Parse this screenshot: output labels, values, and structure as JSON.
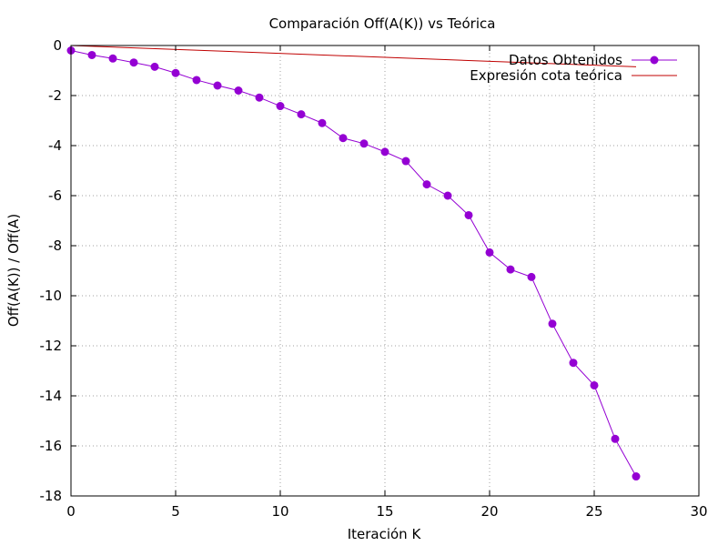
{
  "chart_data": {
    "type": "line",
    "title": "Comparación Off(A(K)) vs Teórica",
    "xlabel": "Iteración K",
    "ylabel": "Off(A(K)) / Off(A)",
    "xlim": [
      0,
      30
    ],
    "ylim": [
      -18,
      0
    ],
    "xticks": [
      0,
      5,
      10,
      15,
      20,
      25,
      30
    ],
    "yticks": [
      0,
      -2,
      -4,
      -6,
      -8,
      -10,
      -12,
      -14,
      -16,
      -18
    ],
    "grid": true,
    "legend_position": "top-right",
    "series": [
      {
        "name": "Datos Obtenidos",
        "color": "#9400d3",
        "marker": "circle",
        "x": [
          0,
          1,
          2,
          3,
          4,
          5,
          6,
          7,
          8,
          9,
          10,
          11,
          12,
          13,
          14,
          15,
          16,
          17,
          18,
          19,
          20,
          21,
          22,
          23,
          24,
          25,
          26,
          27
        ],
        "y": [
          -0.2,
          -0.38,
          -0.52,
          -0.68,
          -0.85,
          -1.1,
          -1.38,
          -1.6,
          -1.8,
          -2.08,
          -2.42,
          -2.75,
          -3.1,
          -3.7,
          -3.92,
          -4.25,
          -4.62,
          -5.55,
          -6.0,
          -6.78,
          -8.27,
          -8.95,
          -9.25,
          -11.12,
          -12.68,
          -13.58,
          -15.72,
          -17.22
        ]
      },
      {
        "name": "Expresión cota teórica",
        "color": "#c00000",
        "marker": "none",
        "x": [
          0,
          27
        ],
        "y": [
          0.0,
          -0.85
        ]
      }
    ]
  }
}
